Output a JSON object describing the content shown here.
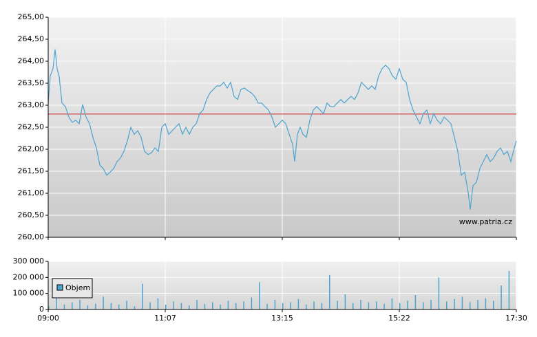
{
  "chart_data": [
    {
      "type": "line",
      "x": [
        540,
        542.25,
        545.25,
        547.5,
        549.75,
        552,
        555,
        558.75,
        562.5,
        566.25,
        570,
        573.75,
        577.5,
        581.25,
        585,
        588.75,
        592.5,
        596.25,
        600,
        603.75,
        607.5,
        611.25,
        615,
        618.75,
        622.5,
        626.25,
        630,
        633.75,
        637.5,
        641.25,
        645,
        648.75,
        652.5,
        656.25,
        660,
        663.75,
        667.5,
        671.25,
        675,
        678.75,
        682.5,
        686.25,
        690,
        693.75,
        697.5,
        701.25,
        705,
        708.75,
        712.5,
        716.25,
        720,
        723.75,
        727.5,
        731.25,
        735,
        738.75,
        742.5,
        746.25,
        750,
        753.75,
        757.5,
        761.25,
        765,
        768.75,
        772.5,
        776.25,
        780,
        783.75,
        787.5,
        791.25,
        795,
        798.75,
        802.5,
        806.25,
        808.5,
        811.5,
        814.5,
        817.5,
        821.25,
        825,
        828.75,
        832.5,
        836.25,
        840,
        843.75,
        847.5,
        851.25,
        855,
        858.75,
        862.5,
        866.25,
        870,
        873.75,
        877.5,
        881.25,
        885,
        888.75,
        892.5,
        896.25,
        900,
        903.75,
        907.5,
        911.25,
        915,
        918.75,
        922.5,
        926.25,
        930,
        933.75,
        937.5,
        941.25,
        945,
        948.75,
        952.5,
        956.25,
        960,
        963.75,
        967.5,
        971.25,
        975,
        978.75,
        982.5,
        986.25,
        990,
        993.75,
        997.5,
        999.75,
        1002.75,
        1006.5,
        1010.25,
        1014,
        1017.75,
        1021.5,
        1025.25,
        1029,
        1032.75,
        1036.5,
        1040.25,
        1044,
        1047.75,
        1050
      ],
      "values": [
        263.05,
        263.67,
        263.83,
        264.27,
        263.83,
        263.64,
        263.05,
        262.97,
        262.73,
        262.61,
        262.66,
        262.58,
        263.02,
        262.73,
        262.58,
        262.27,
        262.03,
        261.64,
        261.56,
        261.41,
        261.48,
        261.56,
        261.72,
        261.8,
        261.95,
        262.19,
        262.5,
        262.34,
        262.42,
        262.27,
        261.95,
        261.88,
        261.92,
        262.03,
        261.95,
        262.5,
        262.58,
        262.34,
        262.42,
        262.5,
        262.58,
        262.34,
        262.5,
        262.34,
        262.5,
        262.58,
        262.81,
        262.89,
        263.13,
        263.28,
        263.36,
        263.44,
        263.44,
        263.52,
        263.39,
        263.52,
        263.2,
        263.13,
        263.36,
        263.39,
        263.33,
        263.28,
        263.2,
        263.05,
        263.05,
        262.97,
        262.89,
        262.73,
        262.5,
        262.58,
        262.66,
        262.58,
        262.34,
        262.11,
        261.72,
        262.34,
        262.5,
        262.34,
        262.27,
        262.66,
        262.89,
        262.97,
        262.89,
        262.81,
        263.05,
        262.97,
        262.97,
        263.05,
        263.13,
        263.05,
        263.13,
        263.2,
        263.13,
        263.28,
        263.52,
        263.44,
        263.36,
        263.44,
        263.36,
        263.67,
        263.83,
        263.91,
        263.83,
        263.67,
        263.59,
        263.83,
        263.59,
        263.52,
        263.13,
        262.89,
        262.73,
        262.58,
        262.81,
        262.89,
        262.58,
        262.81,
        262.66,
        262.58,
        262.73,
        262.66,
        262.58,
        262.27,
        261.95,
        261.41,
        261.48,
        261.02,
        260.63,
        261.17,
        261.25,
        261.56,
        261.72,
        261.88,
        261.72,
        261.8,
        261.95,
        262.03,
        261.88,
        261.95,
        261.72,
        262.03,
        262.19
      ],
      "color": "#4aa3cf",
      "xlim": [
        540,
        1050
      ],
      "ylim": [
        260,
        265
      ],
      "yticks": [
        {
          "value": 260,
          "label": "260,00"
        },
        {
          "value": 260.5,
          "label": "260,50"
        },
        {
          "value": 261,
          "label": "261,00"
        },
        {
          "value": 261.5,
          "label": "261,50"
        },
        {
          "value": 262,
          "label": "262,00"
        },
        {
          "value": 262.5,
          "label": "262,50"
        },
        {
          "value": 263,
          "label": "263,00"
        },
        {
          "value": 263.5,
          "label": "263,50"
        },
        {
          "value": 264,
          "label": "264,00"
        },
        {
          "value": 264.5,
          "label": "264,50"
        },
        {
          "value": 265,
          "label": "265,00"
        }
      ],
      "reference": {
        "value": 262.8,
        "color": "#cc3333"
      },
      "annotation": "www.patria.cz",
      "grid": true
    },
    {
      "type": "bar",
      "x": [
        540,
        548.5,
        557,
        565.5,
        574,
        582.5,
        591,
        599.5,
        608,
        616.5,
        625,
        633.5,
        642,
        650.5,
        659,
        667.5,
        676,
        684.5,
        693,
        701.5,
        710,
        718.5,
        727,
        735.5,
        744,
        752.5,
        761,
        769.5,
        778,
        786.5,
        795,
        803.5,
        812,
        820.5,
        829,
        837.5,
        846,
        854.5,
        863,
        871.5,
        880,
        888.5,
        897,
        905.5,
        914,
        922.5,
        931,
        939.5,
        948,
        956.5,
        965,
        973.5,
        982,
        990.5,
        999,
        1007.5,
        1016,
        1024.5,
        1033,
        1041.5
      ],
      "series": [
        {
          "name": "Objem",
          "color": "#4aa3cf",
          "values": [
            20000,
            90000,
            30000,
            45000,
            60000,
            25000,
            35000,
            80000,
            40000,
            30000,
            55000,
            20000,
            160000,
            45000,
            70000,
            30000,
            50000,
            40000,
            25000,
            60000,
            35000,
            45000,
            30000,
            55000,
            40000,
            50000,
            75000,
            170000,
            35000,
            60000,
            40000,
            45000,
            65000,
            30000,
            50000,
            40000,
            215000,
            55000,
            95000,
            40000,
            60000,
            45000,
            50000,
            35000,
            70000,
            40000,
            55000,
            90000,
            45000,
            60000,
            200000,
            50000,
            65000,
            80000,
            45000,
            60000,
            70000,
            55000,
            150000,
            240000
          ]
        }
      ],
      "xlim": [
        540,
        1050
      ],
      "ylim": [
        0,
        300000
      ],
      "yticks": [
        0,
        {
          "value": 100000,
          "label": "100 000"
        },
        {
          "value": 200000,
          "label": "200 000"
        },
        {
          "value": 300000,
          "label": "300 000"
        }
      ],
      "xticks": [
        {
          "value": 540,
          "label": "09:00"
        },
        {
          "value": 667.5,
          "label": "11:07"
        },
        {
          "value": 795,
          "label": "13:15"
        },
        {
          "value": 922.5,
          "label": "15:22"
        },
        {
          "value": 1050,
          "label": "17:30"
        }
      ],
      "legend": "upper left",
      "grid": true
    }
  ]
}
